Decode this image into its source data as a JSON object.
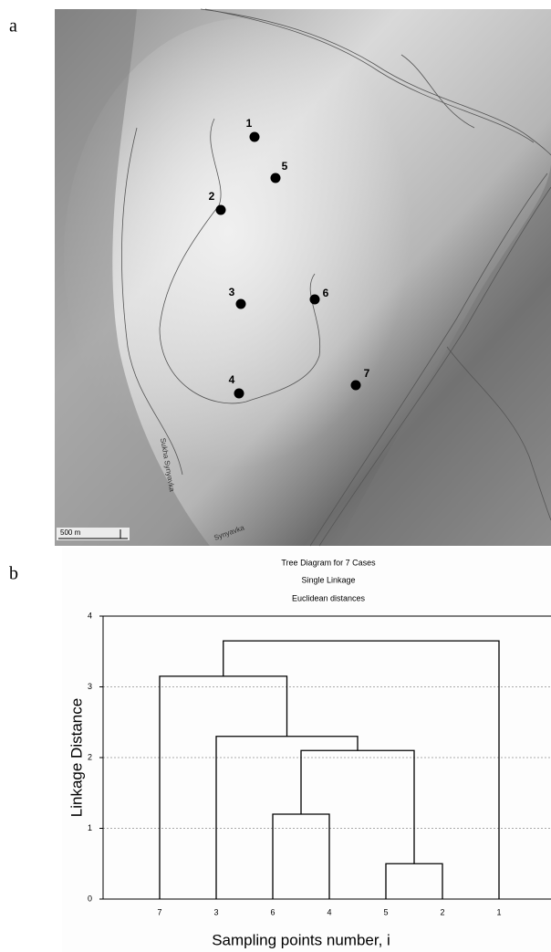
{
  "panel_labels": [
    "a",
    "b"
  ],
  "map": {
    "points": [
      "1",
      "2",
      "3",
      "4",
      "5",
      "6",
      "7"
    ],
    "scale_label": "500 m",
    "place_labels": [
      "Sukha Synyavka",
      "Synyavka"
    ]
  },
  "chart_data": {
    "type": "dendrogram",
    "title": "Tree Diagram for 7 Cases",
    "subtitle": "Single Linkage",
    "note": "Euclidean distances",
    "y_label": "Linkage Distance",
    "x_label": "Sampling points number, i",
    "ylim": [
      0,
      4
    ],
    "yticks": [
      0,
      1,
      2,
      3,
      4
    ],
    "grid": true,
    "color": "#000000",
    "tree": {
      "height": 3.65,
      "children": [
        {
          "height": 3.15,
          "children": [
            {
              "label": "7"
            },
            {
              "height": 2.3,
              "children": [
                {
                  "label": "3"
                },
                {
                  "height": 2.1,
                  "children": [
                    {
                      "height": 1.2,
                      "children": [
                        {
                          "label": "6"
                        },
                        {
                          "label": "4"
                        }
                      ]
                    },
                    {
                      "height": 0.5,
                      "children": [
                        {
                          "label": "5"
                        },
                        {
                          "label": "2"
                        }
                      ]
                    }
                  ]
                }
              ]
            }
          ]
        },
        {
          "label": "1"
        }
      ]
    }
  }
}
